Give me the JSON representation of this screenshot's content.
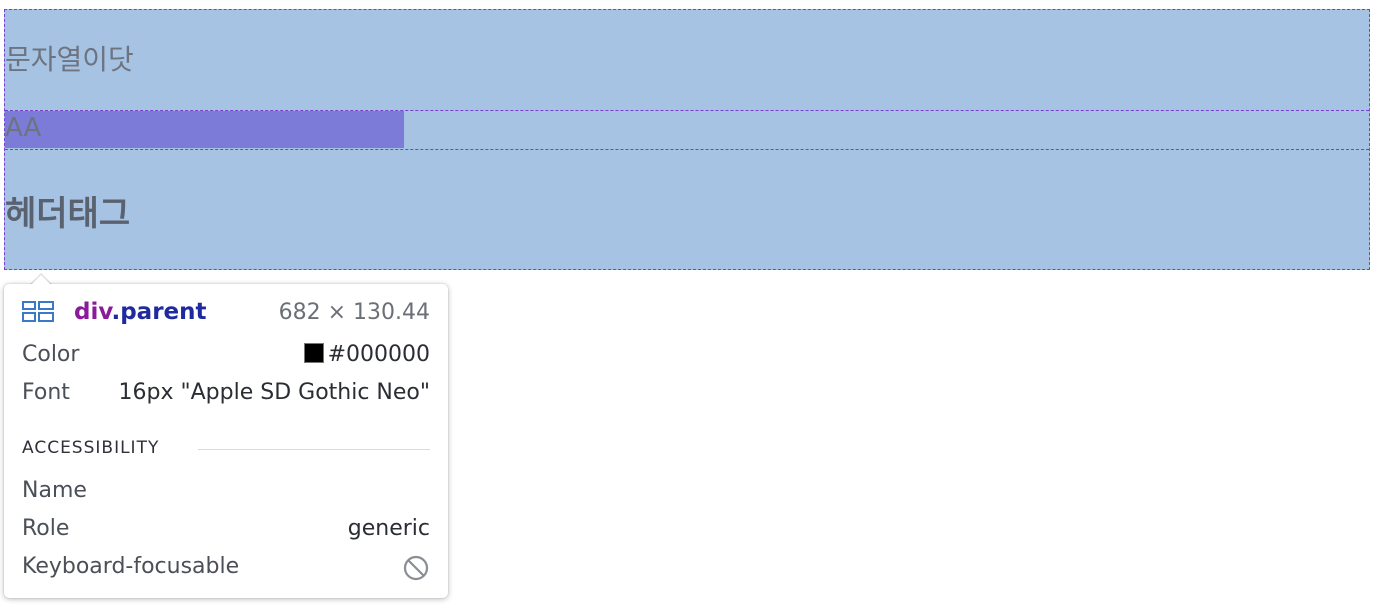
{
  "page": {
    "text_line": "문자열이닷",
    "inline_text": "AA",
    "heading_text": "헤더태그"
  },
  "tooltip": {
    "selector_tag": "div",
    "selector_class": ".parent",
    "dimensions": "682 × 130.44",
    "color_label": "Color",
    "color_value": "#000000",
    "font_label": "Font",
    "font_value": "16px \"Apple SD Gothic Neo\"",
    "accessibility_title": "ACCESSIBILITY",
    "name_label": "Name",
    "name_value": "",
    "role_label": "Role",
    "role_value": "generic",
    "keyboard_label": "Keyboard-focusable",
    "keyboard_icon": "not-allowed-icon"
  },
  "colors": {
    "element_highlight": "#a6c3e4",
    "inline_highlight": "#7c7cd8",
    "outline": "#7a3fd2",
    "tag_color": "#8a1b9b",
    "class_color": "#1f2a9e"
  }
}
